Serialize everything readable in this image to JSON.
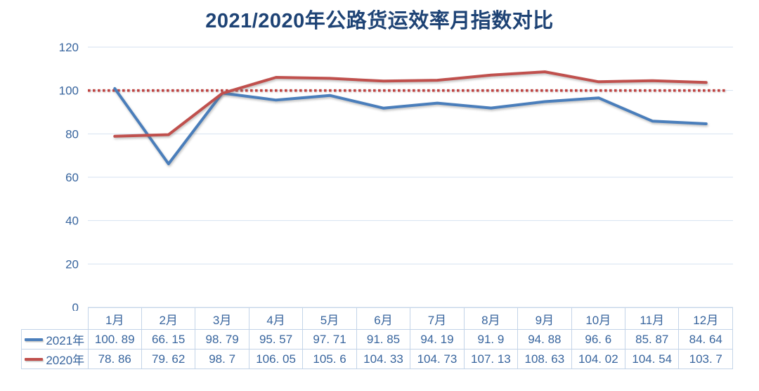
{
  "chart": {
    "title": "2021/2020年公路货运效率月指数对比"
  },
  "chart_data": {
    "type": "line",
    "title": "2021/2020年公路货运效率月指数对比",
    "categories": [
      "1月",
      "2月",
      "3月",
      "4月",
      "5月",
      "6月",
      "7月",
      "8月",
      "9月",
      "10月",
      "11月",
      "12月"
    ],
    "series": [
      {
        "name": "2021年",
        "color": "#4a7ebb",
        "values": [
          100.89,
          66.15,
          98.79,
          95.57,
          97.71,
          91.85,
          94.19,
          91.9,
          94.88,
          96.6,
          85.87,
          84.64
        ],
        "display": [
          "100. 89",
          "66. 15",
          "98. 79",
          "95. 57",
          "97. 71",
          "91. 85",
          "94. 19",
          "91. 9",
          "94. 88",
          "96. 6",
          "85. 87",
          "84. 64"
        ]
      },
      {
        "name": "2020年",
        "color": "#c0504d",
        "values": [
          78.86,
          79.62,
          98.7,
          106.05,
          105.6,
          104.33,
          104.73,
          107.13,
          108.63,
          104.02,
          104.54,
          103.7
        ],
        "display": [
          "78. 86",
          "79. 62",
          "98. 7",
          "106. 05",
          "105. 6",
          "104. 33",
          "104. 73",
          "107. 13",
          "108. 63",
          "104. 02",
          "104. 54",
          "103. 7"
        ]
      }
    ],
    "reference_line": {
      "value": 100,
      "color": "#c04340",
      "style": "dotted"
    },
    "y_axis": {
      "min": 0,
      "max": 120,
      "ticks": [
        0,
        20,
        40,
        60,
        80,
        100,
        120
      ]
    },
    "xlabel": "",
    "ylabel": "",
    "grid": true,
    "legend_position": "table-left-column",
    "colors": {
      "grid": "#d6e2f1",
      "axis_text": "#38659e",
      "table_border": "#c3d4e8",
      "table_text": "#38659e",
      "title_text": "#1e4375"
    }
  }
}
